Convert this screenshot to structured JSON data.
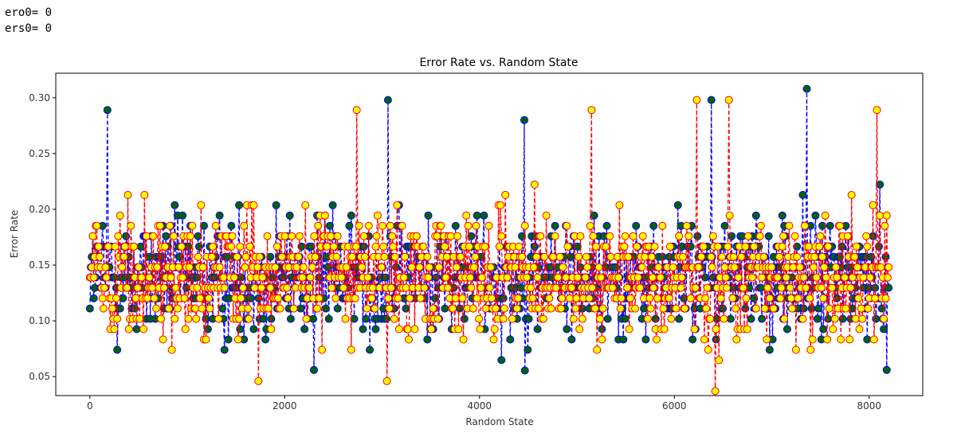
{
  "output": {
    "line1": "ero0= 0",
    "line2": "ers0= 0"
  },
  "chart_data": {
    "type": "line",
    "title": "Error Rate vs. Random State",
    "xlabel": "Random State",
    "ylabel": "Error Rate",
    "xlim": [
      -350,
      8550
    ],
    "ylim": [
      0.033,
      0.322
    ],
    "xticks": [
      0,
      2000,
      4000,
      6000,
      8000
    ],
    "yticks": [
      0.05,
      0.1,
      0.15,
      0.2,
      0.25,
      0.3
    ],
    "ytick_labels": [
      "0.05",
      "0.10",
      "0.15",
      "0.20",
      "0.25",
      "0.30"
    ],
    "grid": false,
    "series": [
      {
        "line_color": "#0000ff",
        "linestyle": "dashed",
        "marker_face": "#006400",
        "marker_edge": "#0000ff",
        "x_range": [
          0,
          8200
        ],
        "y_mode": 0.14,
        "y_range": [
          0.046,
          0.308
        ],
        "notable_points": [
          [
            180,
            0.289
          ],
          [
            3060,
            0.298
          ],
          [
            6380,
            0.298
          ],
          [
            7360,
            0.308
          ],
          [
            4460,
            0.28
          ],
          [
            2300,
            0.056
          ],
          [
            8180,
            0.056
          ]
        ]
      },
      {
        "line_color": "#ff0000",
        "linestyle": "dashed",
        "marker_face": "#ffff00",
        "marker_edge": "#ff0000",
        "x_range": [
          0,
          8200
        ],
        "y_mode": 0.14,
        "y_range": [
          0.037,
          0.298
        ],
        "notable_points": [
          [
            2740,
            0.289
          ],
          [
            5150,
            0.289
          ],
          [
            6230,
            0.298
          ],
          [
            6560,
            0.298
          ],
          [
            8080,
            0.289
          ],
          [
            6420,
            0.037
          ],
          [
            1730,
            0.046
          ],
          [
            3050,
            0.046
          ]
        ]
      }
    ]
  }
}
